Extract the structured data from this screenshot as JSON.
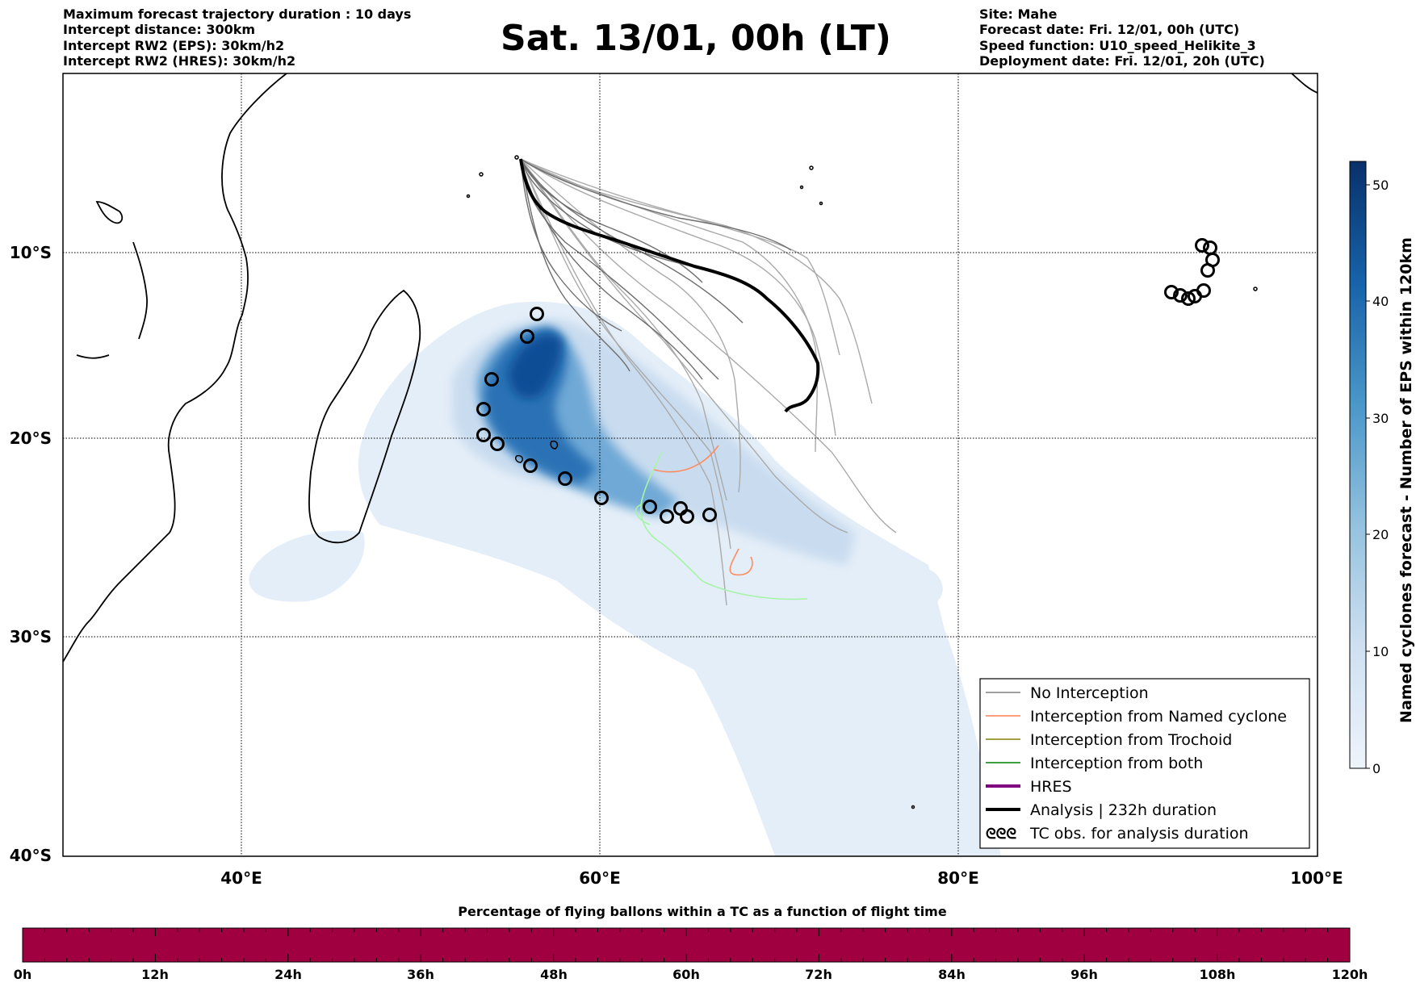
{
  "title": "Sat. 13/01, 00h (LT)",
  "info_left": [
    "Maximum forecast trajectory duration : 10 days",
    "Intercept distance: 300km",
    "Intercept RW2 (EPS):  30km/h2",
    "Intercept RW2 (HRES): 30km/h2"
  ],
  "info_right": [
    "Site: Mahe",
    "Forecast date: Fri. 12/01, 00h (UTC)",
    "Speed function: U10_speed_Helikite_3",
    "Deployment date: Fri. 12/01, 20h (UTC)"
  ],
  "map": {
    "lon_ticks": [
      "40°E",
      "60°E",
      "80°E",
      "100°E"
    ],
    "lat_ticks": [
      "10°S",
      "20°S",
      "30°S",
      "40°S"
    ]
  },
  "legend": [
    {
      "label": "No Interception",
      "color": "#808080"
    },
    {
      "label": "Interception from Named cyclone",
      "color": "#ff7f50"
    },
    {
      "label": "Interception from Trochoid",
      "color": "#808000"
    },
    {
      "label": "Interception from both",
      "color": "#008000"
    },
    {
      "label": "HRES",
      "color": "#800080"
    },
    {
      "label": "Analysis | 232h duration",
      "color": "#000000"
    },
    {
      "label": "TC obs. for analysis duration",
      "color": "#000000",
      "symbol": "ᘓᘓᘓ"
    }
  ],
  "colorbar": {
    "label": "Named cyclones forecast - Number of EPS within 120km",
    "ticks": [
      "0",
      "10",
      "20",
      "30",
      "40",
      "50"
    ]
  },
  "bottom_bar": {
    "title": "Percentage of flying ballons within a TC as a function of flight time",
    "color": "#a0003f",
    "ticks": [
      "0h",
      "12h",
      "24h",
      "36h",
      "48h",
      "60h",
      "72h",
      "84h",
      "96h",
      "108h",
      "120h"
    ]
  }
}
